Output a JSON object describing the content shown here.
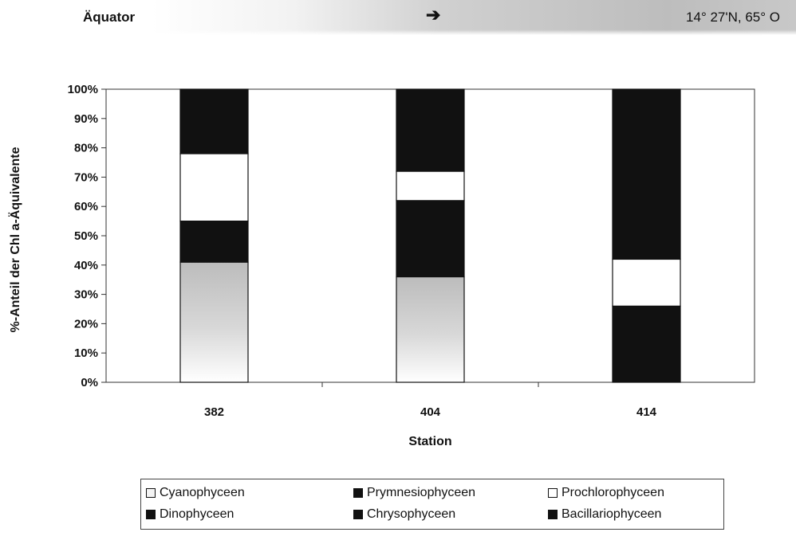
{
  "header": {
    "left_label": "Äquator",
    "right_label": "14° 27'N, 65° O",
    "arrow": "➔"
  },
  "chart_data": {
    "type": "bar",
    "stacked": true,
    "normalized_percent": true,
    "title": "",
    "xlabel": "Station",
    "ylabel": "%-Anteil der Chl a-Äquivalente",
    "categories": [
      "382",
      "404",
      "414"
    ],
    "ylim": [
      0,
      100
    ],
    "yticks": [
      "0%",
      "10%",
      "20%",
      "30%",
      "40%",
      "50%",
      "60%",
      "70%",
      "80%",
      "90%",
      "100%"
    ],
    "grid": false,
    "legend_position": "bottom",
    "series": [
      {
        "name": "Cyanophyceen",
        "color": "#f4f4f4",
        "values": [
          41,
          36,
          0
        ]
      },
      {
        "name": "Prymnesiophyceen",
        "color": "#111111",
        "values": [
          14,
          26,
          26
        ]
      },
      {
        "name": "Prochlorophyceen",
        "color": "#ffffff",
        "values": [
          23,
          10,
          16
        ]
      },
      {
        "name": "Dinophyceen",
        "color": "#111111",
        "values": [
          22,
          28,
          58
        ]
      },
      {
        "name": "Chrysophyceen",
        "color": "#111111",
        "values": [
          0,
          0,
          0
        ]
      },
      {
        "name": "Bacillariophyceen",
        "color": "#111111",
        "values": [
          0,
          0,
          0
        ]
      }
    ]
  },
  "legend": {
    "items": [
      {
        "label": "Cyanophyceen",
        "swatch": "#f4f4f4"
      },
      {
        "label": "Prymnesiophyceen",
        "swatch": "#111111"
      },
      {
        "label": "Prochlorophyceen",
        "swatch": "#ffffff"
      },
      {
        "label": "Dinophyceen",
        "swatch": "#111111"
      },
      {
        "label": "Chrysophyceen",
        "swatch": "#111111"
      },
      {
        "label": "Bacillariophyceen",
        "swatch": "#111111"
      }
    ]
  }
}
